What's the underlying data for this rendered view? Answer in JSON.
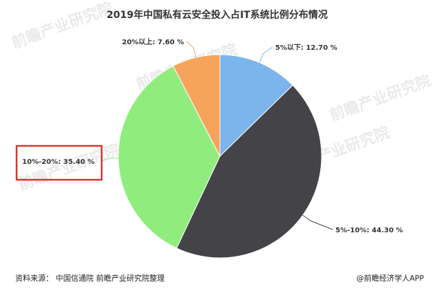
{
  "chart_data": {
    "type": "pie",
    "title": "2019年中国私有云安全投入占IT系统比例分布情况",
    "slices": [
      {
        "label": "5%以下",
        "value": 12.7,
        "value_label": "12.70 %",
        "color": "#7cb5ec"
      },
      {
        "label": "5%-10%",
        "value": 44.3,
        "value_label": "44.30 %",
        "color": "#434348"
      },
      {
        "label": "10%-20%",
        "value": 35.4,
        "value_label": "35.40 %",
        "color": "#90ed7d"
      },
      {
        "label": "20%以上",
        "value": 7.6,
        "value_label": "7.60 %",
        "color": "#f7a35c"
      }
    ],
    "highlighted_slice": "10%-20%",
    "highlight_color": "#d9342b",
    "legend": "none"
  },
  "footer": {
    "source": "资料来源： 中国信通院 前瞻产业研究院整理",
    "brand": "@前瞻经济学人APP"
  },
  "watermark": {
    "text": "前瞻产业研究院"
  }
}
